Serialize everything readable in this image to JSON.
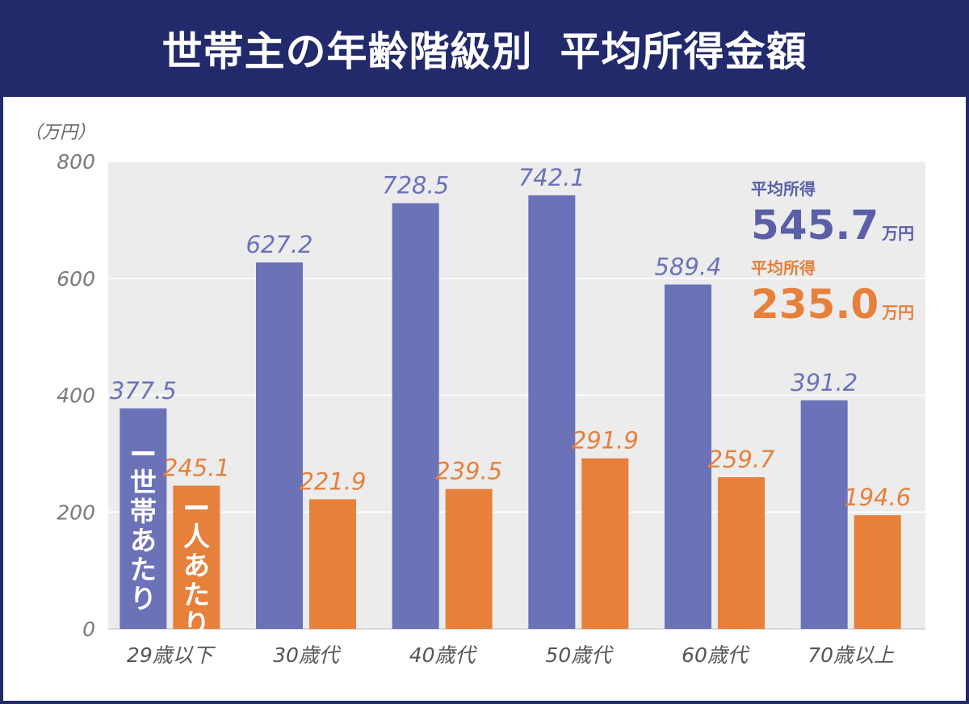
{
  "header": {
    "title_part1": "世帯主の年齢階級別",
    "title_part2": "平均所得金額"
  },
  "chart_data": {
    "type": "bar",
    "unit_label": "（万円）",
    "categories": [
      "29歳以下",
      "30歳代",
      "40歳代",
      "50歳代",
      "60歳代",
      "70歳以上"
    ],
    "series": [
      {
        "name": "一世帯あたり",
        "color": "#6b72b8",
        "values": [
          377.5,
          627.2,
          728.5,
          742.1,
          589.4,
          391.2
        ],
        "labels": [
          "377.5",
          "627.2",
          "728.5",
          "742.1",
          "589.4",
          "391.2"
        ]
      },
      {
        "name": "一人あたり",
        "color": "#e6803a",
        "values": [
          245.1,
          221.9,
          239.5,
          291.9,
          259.7,
          194.6
        ],
        "labels": [
          "245.1",
          "221.9",
          "239.5",
          "291.9",
          "259.7",
          "194.6"
        ]
      }
    ],
    "ylim": [
      0,
      800
    ],
    "yticks": [
      "0",
      "200",
      "400",
      "600",
      "800"
    ],
    "ytick_values": [
      0,
      200,
      400,
      600,
      800
    ],
    "grid": true,
    "background_color": "#ececec",
    "annotations": [
      {
        "title": "平均所得",
        "value": "545.7",
        "unit": "万円",
        "color": "#5a5fa8"
      },
      {
        "title": "平均所得",
        "value": "235.0",
        "unit": "万円",
        "color": "#e6803a"
      }
    ]
  }
}
